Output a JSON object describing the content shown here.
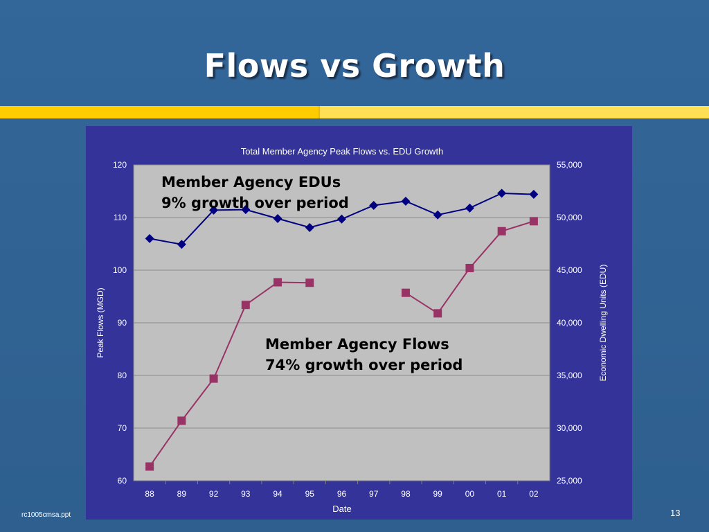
{
  "slide": {
    "title": "Flows vs Growth",
    "footer_file": "rc1005cmsa.ppt",
    "page_number": "13"
  },
  "colors": {
    "background": "#336699",
    "accent_bar": "#ffcc00",
    "chart_panel": "#333399",
    "plot_area": "#c0c0c0",
    "edu_series": "#000080",
    "flows_series": "#993366"
  },
  "callouts": {
    "edu_line1": "Member Agency EDUs",
    "edu_line2": "9% growth over period",
    "flows_line1": "Member Agency Flows",
    "flows_line2": "74% growth over period"
  },
  "chart_data": {
    "type": "line",
    "title": "Total Member Agency Peak Flows vs. EDU Growth",
    "xlabel": "Date",
    "ylabel": "Peak Flows (MGD)",
    "y2label": "Economic Dwelling Units (EDU)",
    "categories": [
      "88",
      "89",
      "92",
      "93",
      "94",
      "95",
      "96",
      "97",
      "98",
      "99",
      "00",
      "01",
      "02"
    ],
    "ylim": [
      60,
      120
    ],
    "y2lim": [
      25000,
      55000
    ],
    "yticks": [
      "60",
      "70",
      "80",
      "90",
      "100",
      "110",
      "120"
    ],
    "y2ticks": [
      "25,000",
      "30,000",
      "35,000",
      "40,000",
      "45,000",
      "50,000",
      "55,000"
    ],
    "grid": true,
    "series": [
      {
        "axis": "y2",
        "marker": "diamond",
        "color": "#000080",
        "values": [
          48000,
          47450,
          50700,
          50750,
          49900,
          49050,
          49850,
          51150,
          51550,
          50250,
          50900,
          52300,
          52200
        ]
      },
      {
        "axis": "y",
        "marker": "square",
        "color": "#993366",
        "values": [
          62.7,
          71.4,
          79.4,
          93.4,
          97.7,
          97.6,
          null,
          null,
          95.7,
          91.8,
          100.4,
          107.4,
          109.3
        ]
      }
    ]
  }
}
